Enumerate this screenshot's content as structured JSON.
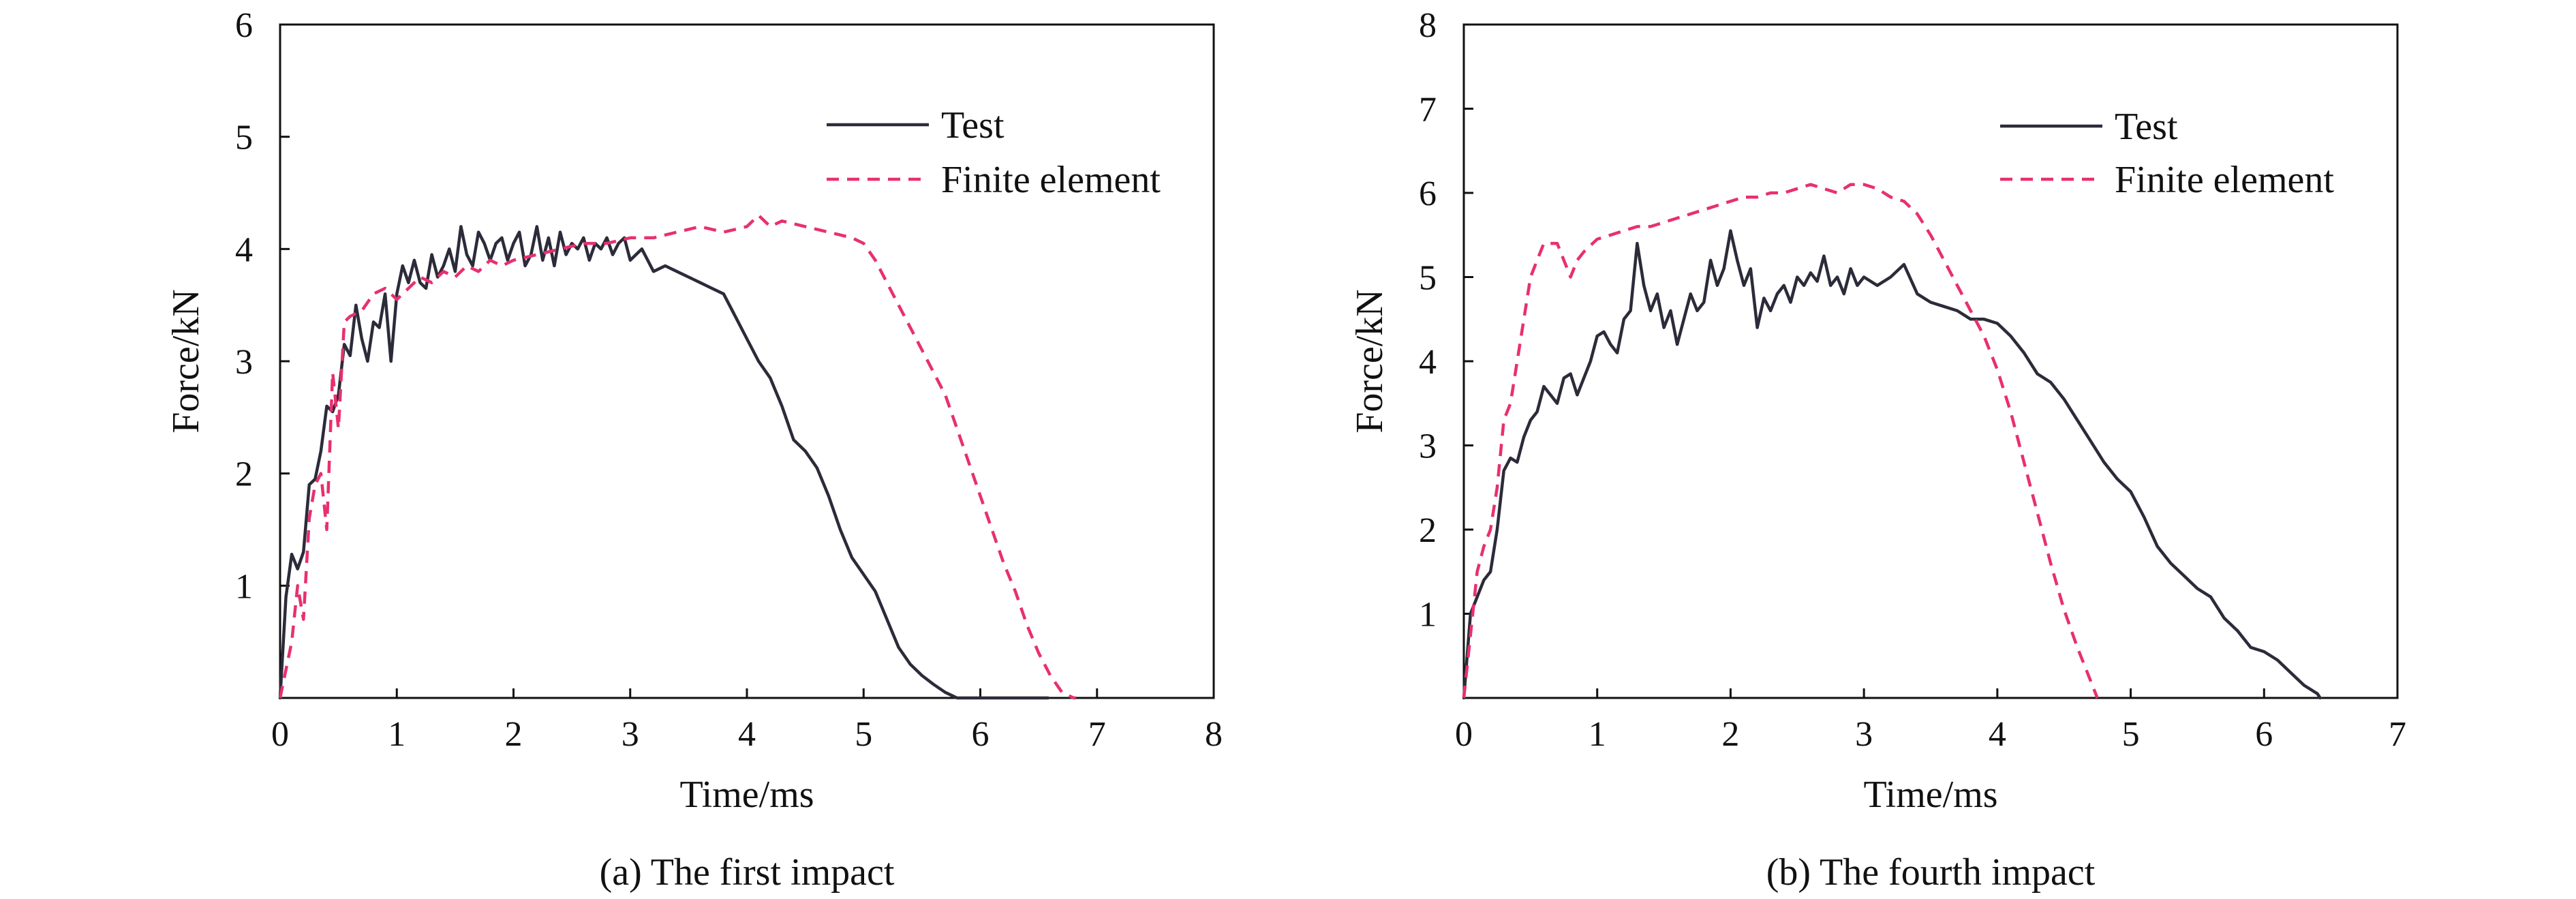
{
  "chart_data": [
    {
      "type": "line",
      "caption": "(a) The first impact",
      "xlabel": "Time/ms",
      "ylabel": "Force/kN",
      "xlim": [
        0,
        8
      ],
      "ylim": [
        0,
        6
      ],
      "xticks": [
        0,
        1,
        2,
        3,
        4,
        5,
        6,
        7,
        8
      ],
      "yticks": [
        0,
        1,
        2,
        3,
        4,
        5,
        6
      ],
      "grid": false,
      "legend": "top-right",
      "series": [
        {
          "name": "Test",
          "color": "#2b2b3a",
          "style": "solid",
          "x": [
            0.0,
            0.05,
            0.1,
            0.15,
            0.2,
            0.25,
            0.3,
            0.35,
            0.4,
            0.45,
            0.5,
            0.55,
            0.6,
            0.65,
            0.7,
            0.75,
            0.8,
            0.85,
            0.9,
            0.95,
            1.0,
            1.05,
            1.1,
            1.15,
            1.2,
            1.25,
            1.3,
            1.35,
            1.4,
            1.45,
            1.5,
            1.55,
            1.6,
            1.65,
            1.7,
            1.75,
            1.8,
            1.85,
            1.9,
            1.95,
            2.0,
            2.05,
            2.1,
            2.15,
            2.2,
            2.25,
            2.3,
            2.35,
            2.4,
            2.45,
            2.5,
            2.55,
            2.6,
            2.65,
            2.7,
            2.75,
            2.8,
            2.85,
            2.9,
            2.95,
            3.0,
            3.1,
            3.2,
            3.3,
            3.4,
            3.5,
            3.6,
            3.7,
            3.8,
            3.9,
            4.0,
            4.1,
            4.2,
            4.3,
            4.4,
            4.5,
            4.6,
            4.7,
            4.8,
            4.9,
            5.0,
            5.1,
            5.2,
            5.3,
            5.4,
            5.5,
            5.6,
            5.7,
            5.8,
            5.9,
            6.0,
            6.1,
            6.2,
            6.3,
            6.4,
            6.5,
            6.58
          ],
          "y": [
            0.0,
            0.9,
            1.28,
            1.15,
            1.3,
            1.9,
            1.95,
            2.2,
            2.6,
            2.55,
            2.7,
            3.15,
            3.05,
            3.5,
            3.2,
            3.0,
            3.35,
            3.3,
            3.6,
            3.0,
            3.6,
            3.85,
            3.7,
            3.9,
            3.7,
            3.65,
            3.95,
            3.75,
            3.85,
            4.0,
            3.8,
            4.2,
            3.95,
            3.85,
            4.15,
            4.05,
            3.9,
            4.05,
            4.1,
            3.9,
            4.05,
            4.15,
            3.85,
            3.95,
            4.2,
            3.9,
            4.1,
            3.85,
            4.15,
            3.95,
            4.05,
            4.0,
            4.1,
            3.9,
            4.05,
            4.0,
            4.1,
            3.95,
            4.05,
            4.1,
            3.9,
            4.0,
            3.8,
            3.85,
            3.8,
            3.75,
            3.7,
            3.65,
            3.6,
            3.4,
            3.2,
            3.0,
            2.85,
            2.6,
            2.3,
            2.2,
            2.05,
            1.8,
            1.5,
            1.25,
            1.1,
            0.95,
            0.7,
            0.45,
            0.3,
            0.2,
            0.12,
            0.05,
            0.0,
            0.0,
            0.0,
            0.0,
            0.0,
            0.0,
            0.0,
            0.0,
            0.0
          ]
        },
        {
          "name": "Finite element",
          "color": "#e8306e",
          "style": "dashed",
          "x": [
            0.0,
            0.1,
            0.15,
            0.2,
            0.25,
            0.3,
            0.35,
            0.4,
            0.45,
            0.5,
            0.55,
            0.6,
            0.7,
            0.8,
            0.9,
            1.0,
            1.1,
            1.2,
            1.3,
            1.4,
            1.5,
            1.6,
            1.7,
            1.8,
            1.9,
            2.0,
            2.2,
            2.4,
            2.6,
            2.8,
            3.0,
            3.2,
            3.4,
            3.6,
            3.8,
            4.0,
            4.1,
            4.2,
            4.3,
            4.5,
            4.7,
            4.9,
            5.0,
            5.1,
            5.2,
            5.3,
            5.4,
            5.5,
            5.6,
            5.7,
            5.8,
            5.9,
            6.0,
            6.1,
            6.2,
            6.3,
            6.4,
            6.5,
            6.6,
            6.7,
            6.8,
            6.82
          ],
          "y": [
            0.0,
            0.5,
            1.0,
            0.7,
            1.6,
            1.9,
            2.0,
            1.5,
            2.9,
            2.4,
            3.35,
            3.4,
            3.45,
            3.6,
            3.65,
            3.55,
            3.65,
            3.75,
            3.7,
            3.8,
            3.75,
            3.85,
            3.8,
            3.9,
            3.85,
            3.9,
            3.95,
            4.0,
            4.05,
            4.05,
            4.1,
            4.1,
            4.15,
            4.2,
            4.15,
            4.2,
            4.3,
            4.2,
            4.25,
            4.2,
            4.15,
            4.1,
            4.05,
            3.9,
            3.7,
            3.5,
            3.3,
            3.1,
            2.9,
            2.7,
            2.4,
            2.1,
            1.8,
            1.5,
            1.2,
            0.95,
            0.65,
            0.4,
            0.2,
            0.05,
            0.0,
            0.0
          ]
        }
      ]
    },
    {
      "type": "line",
      "caption": "(b) The fourth impact",
      "xlabel": "Time/ms",
      "ylabel": "Force/kN",
      "xlim": [
        0,
        7
      ],
      "ylim": [
        0,
        8
      ],
      "xticks": [
        0,
        1,
        2,
        3,
        4,
        5,
        6,
        7
      ],
      "yticks": [
        0,
        1,
        2,
        3,
        4,
        5,
        6,
        7,
        8
      ],
      "grid": false,
      "legend": "top-right",
      "series": [
        {
          "name": "Test",
          "color": "#2b2b3a",
          "style": "solid",
          "x": [
            0.0,
            0.05,
            0.1,
            0.15,
            0.2,
            0.25,
            0.3,
            0.35,
            0.4,
            0.45,
            0.5,
            0.55,
            0.6,
            0.65,
            0.7,
            0.75,
            0.8,
            0.85,
            0.9,
            0.95,
            1.0,
            1.05,
            1.1,
            1.15,
            1.2,
            1.25,
            1.3,
            1.35,
            1.4,
            1.45,
            1.5,
            1.55,
            1.6,
            1.65,
            1.7,
            1.75,
            1.8,
            1.85,
            1.9,
            1.95,
            2.0,
            2.05,
            2.1,
            2.15,
            2.2,
            2.25,
            2.3,
            2.35,
            2.4,
            2.45,
            2.5,
            2.55,
            2.6,
            2.65,
            2.7,
            2.75,
            2.8,
            2.85,
            2.9,
            2.95,
            3.0,
            3.1,
            3.2,
            3.3,
            3.4,
            3.5,
            3.6,
            3.7,
            3.8,
            3.9,
            4.0,
            4.1,
            4.2,
            4.3,
            4.4,
            4.5,
            4.6,
            4.7,
            4.8,
            4.9,
            5.0,
            5.1,
            5.2,
            5.3,
            5.4,
            5.5,
            5.6,
            5.7,
            5.8,
            5.9,
            6.0,
            6.1,
            6.2,
            6.3,
            6.4,
            6.42
          ],
          "y": [
            0.0,
            1.0,
            1.2,
            1.4,
            1.5,
            2.0,
            2.7,
            2.85,
            2.8,
            3.1,
            3.3,
            3.4,
            3.7,
            3.6,
            3.5,
            3.8,
            3.85,
            3.6,
            3.8,
            4.0,
            4.3,
            4.35,
            4.2,
            4.1,
            4.5,
            4.6,
            5.4,
            4.9,
            4.6,
            4.8,
            4.4,
            4.6,
            4.2,
            4.5,
            4.8,
            4.6,
            4.7,
            5.2,
            4.9,
            5.1,
            5.55,
            5.2,
            4.9,
            5.1,
            4.4,
            4.75,
            4.6,
            4.8,
            4.9,
            4.7,
            5.0,
            4.9,
            5.05,
            4.95,
            5.25,
            4.9,
            5.0,
            4.8,
            5.1,
            4.9,
            5.0,
            4.9,
            5.0,
            5.15,
            4.8,
            4.7,
            4.65,
            4.6,
            4.5,
            4.5,
            4.45,
            4.3,
            4.1,
            3.85,
            3.75,
            3.55,
            3.3,
            3.05,
            2.8,
            2.6,
            2.45,
            2.15,
            1.8,
            1.6,
            1.45,
            1.3,
            1.2,
            0.95,
            0.8,
            0.6,
            0.55,
            0.45,
            0.3,
            0.15,
            0.05,
            0.0
          ]
        },
        {
          "name": "Finite element",
          "color": "#e8306e",
          "style": "dashed",
          "x": [
            0.0,
            0.1,
            0.15,
            0.2,
            0.25,
            0.3,
            0.35,
            0.4,
            0.45,
            0.5,
            0.55,
            0.6,
            0.7,
            0.8,
            0.85,
            0.9,
            1.0,
            1.1,
            1.2,
            1.3,
            1.4,
            1.5,
            1.6,
            1.7,
            1.8,
            1.9,
            2.0,
            2.1,
            2.2,
            2.3,
            2.4,
            2.5,
            2.6,
            2.7,
            2.8,
            2.9,
            3.0,
            3.1,
            3.2,
            3.3,
            3.4,
            3.5,
            3.6,
            3.7,
            3.8,
            3.9,
            4.0,
            4.1,
            4.2,
            4.3,
            4.4,
            4.5,
            4.6,
            4.7,
            4.75
          ],
          "y": [
            0.0,
            1.5,
            1.8,
            2.0,
            2.5,
            3.3,
            3.5,
            4.0,
            4.5,
            5.0,
            5.2,
            5.4,
            5.4,
            5.0,
            5.2,
            5.3,
            5.45,
            5.5,
            5.55,
            5.6,
            5.6,
            5.65,
            5.7,
            5.75,
            5.8,
            5.85,
            5.9,
            5.95,
            5.95,
            6.0,
            6.0,
            6.05,
            6.1,
            6.05,
            6.0,
            6.1,
            6.1,
            6.05,
            5.95,
            5.9,
            5.75,
            5.5,
            5.2,
            4.9,
            4.6,
            4.3,
            3.9,
            3.4,
            2.8,
            2.2,
            1.6,
            1.05,
            0.6,
            0.2,
            0.0
          ]
        }
      ]
    }
  ]
}
